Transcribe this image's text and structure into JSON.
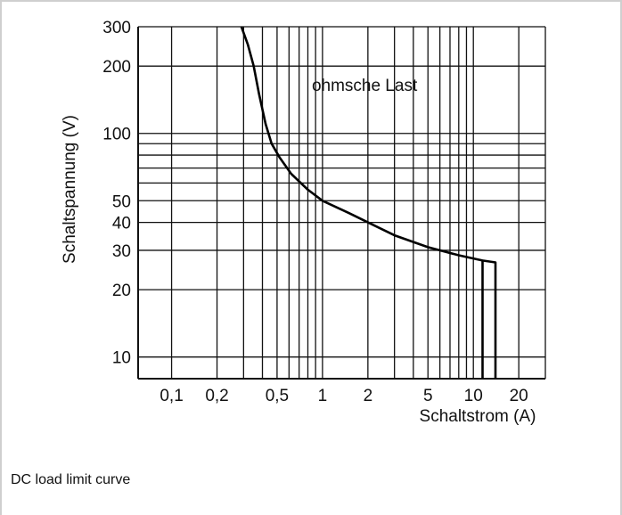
{
  "caption": "DC load limit curve",
  "chart_data": {
    "type": "line",
    "xlabel": "Schaltstrom (A)",
    "ylabel": "Schaltspannung (V)",
    "x_scale": "log",
    "y_scale": "log",
    "xlim": [
      0.06,
      30
    ],
    "ylim": [
      8,
      300
    ],
    "x_ticks": [
      {
        "value": 0.1,
        "label": "0,1"
      },
      {
        "value": 0.2,
        "label": "0,2"
      },
      {
        "value": 0.5,
        "label": "0,5"
      },
      {
        "value": 1,
        "label": "1"
      },
      {
        "value": 2,
        "label": "2"
      },
      {
        "value": 5,
        "label": "5"
      },
      {
        "value": 10,
        "label": "10"
      },
      {
        "value": 20,
        "label": "20"
      }
    ],
    "y_ticks": [
      {
        "value": 10,
        "label": "10"
      },
      {
        "value": 20,
        "label": "20"
      },
      {
        "value": 30,
        "label": "30"
      },
      {
        "value": 40,
        "label": "40"
      },
      {
        "value": 50,
        "label": "50"
      },
      {
        "value": 100,
        "label": "100"
      },
      {
        "value": 200,
        "label": "200"
      },
      {
        "value": 300,
        "label": "300"
      }
    ],
    "x_gridlines": [
      0.1,
      0.2,
      0.3,
      0.4,
      0.5,
      0.6,
      0.7,
      0.8,
      0.9,
      1,
      2,
      3,
      4,
      5,
      6,
      7,
      8,
      9,
      10,
      20
    ],
    "y_gridlines": [
      10,
      20,
      30,
      40,
      50,
      60,
      70,
      80,
      90,
      100,
      200,
      300
    ],
    "grid": true,
    "annotations": [
      {
        "text": "ohmsche Last",
        "x": 1.9,
        "y": 155
      }
    ],
    "series": [
      {
        "x": [
          0.29,
          0.32,
          0.35,
          0.38,
          0.42,
          0.46,
          0.52,
          0.62,
          0.8,
          1.0,
          1.5,
          2.0,
          3.0,
          5.0,
          8.0,
          11.5,
          14.0,
          14.0
        ],
        "y": [
          300,
          250,
          200,
          150,
          110,
          90,
          78,
          66,
          56,
          50,
          44,
          40,
          35,
          31,
          28.5,
          27,
          26.5,
          8
        ]
      },
      {
        "x": [
          11.5,
          11.5
        ],
        "y": [
          27,
          8
        ]
      }
    ]
  }
}
